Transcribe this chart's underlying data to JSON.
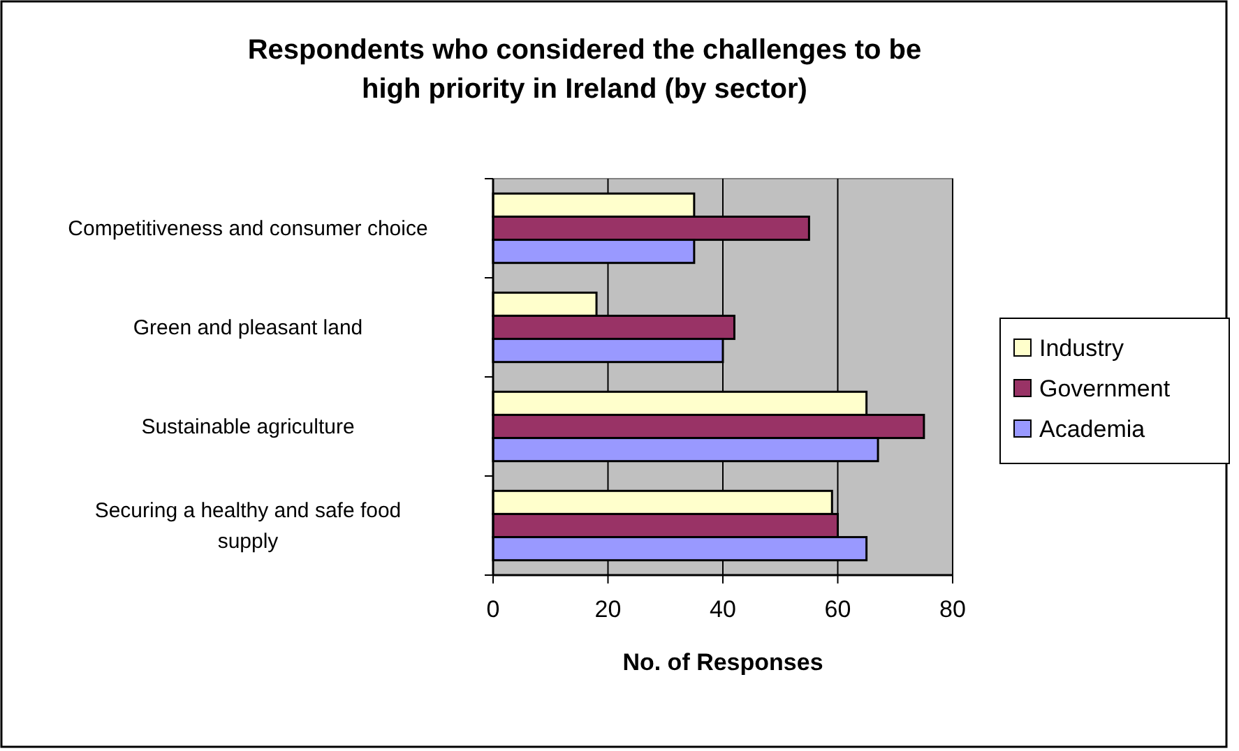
{
  "chart_data": {
    "type": "bar",
    "orientation": "horizontal",
    "title": "Respondents who considered the challenges to be high priority in Ireland (by sector)",
    "xlabel": "No. of Responses",
    "categories": [
      "Competitiveness and consumer choice",
      "Green and pleasant land",
      "Sustainable agriculture",
      "Securing a healthy and safe food supply"
    ],
    "series": [
      {
        "name": "Industry",
        "color": "#ffffcc",
        "values": [
          35,
          18,
          65,
          59
        ]
      },
      {
        "name": "Government",
        "color": "#993366",
        "values": [
          55,
          42,
          75,
          60
        ]
      },
      {
        "name": "Academia",
        "color": "#9999ff",
        "values": [
          35,
          40,
          67,
          65
        ]
      }
    ],
    "xlim": [
      0,
      80
    ],
    "xticks": [
      0,
      20,
      40,
      60,
      80
    ],
    "grid": "x",
    "legend": "right"
  }
}
